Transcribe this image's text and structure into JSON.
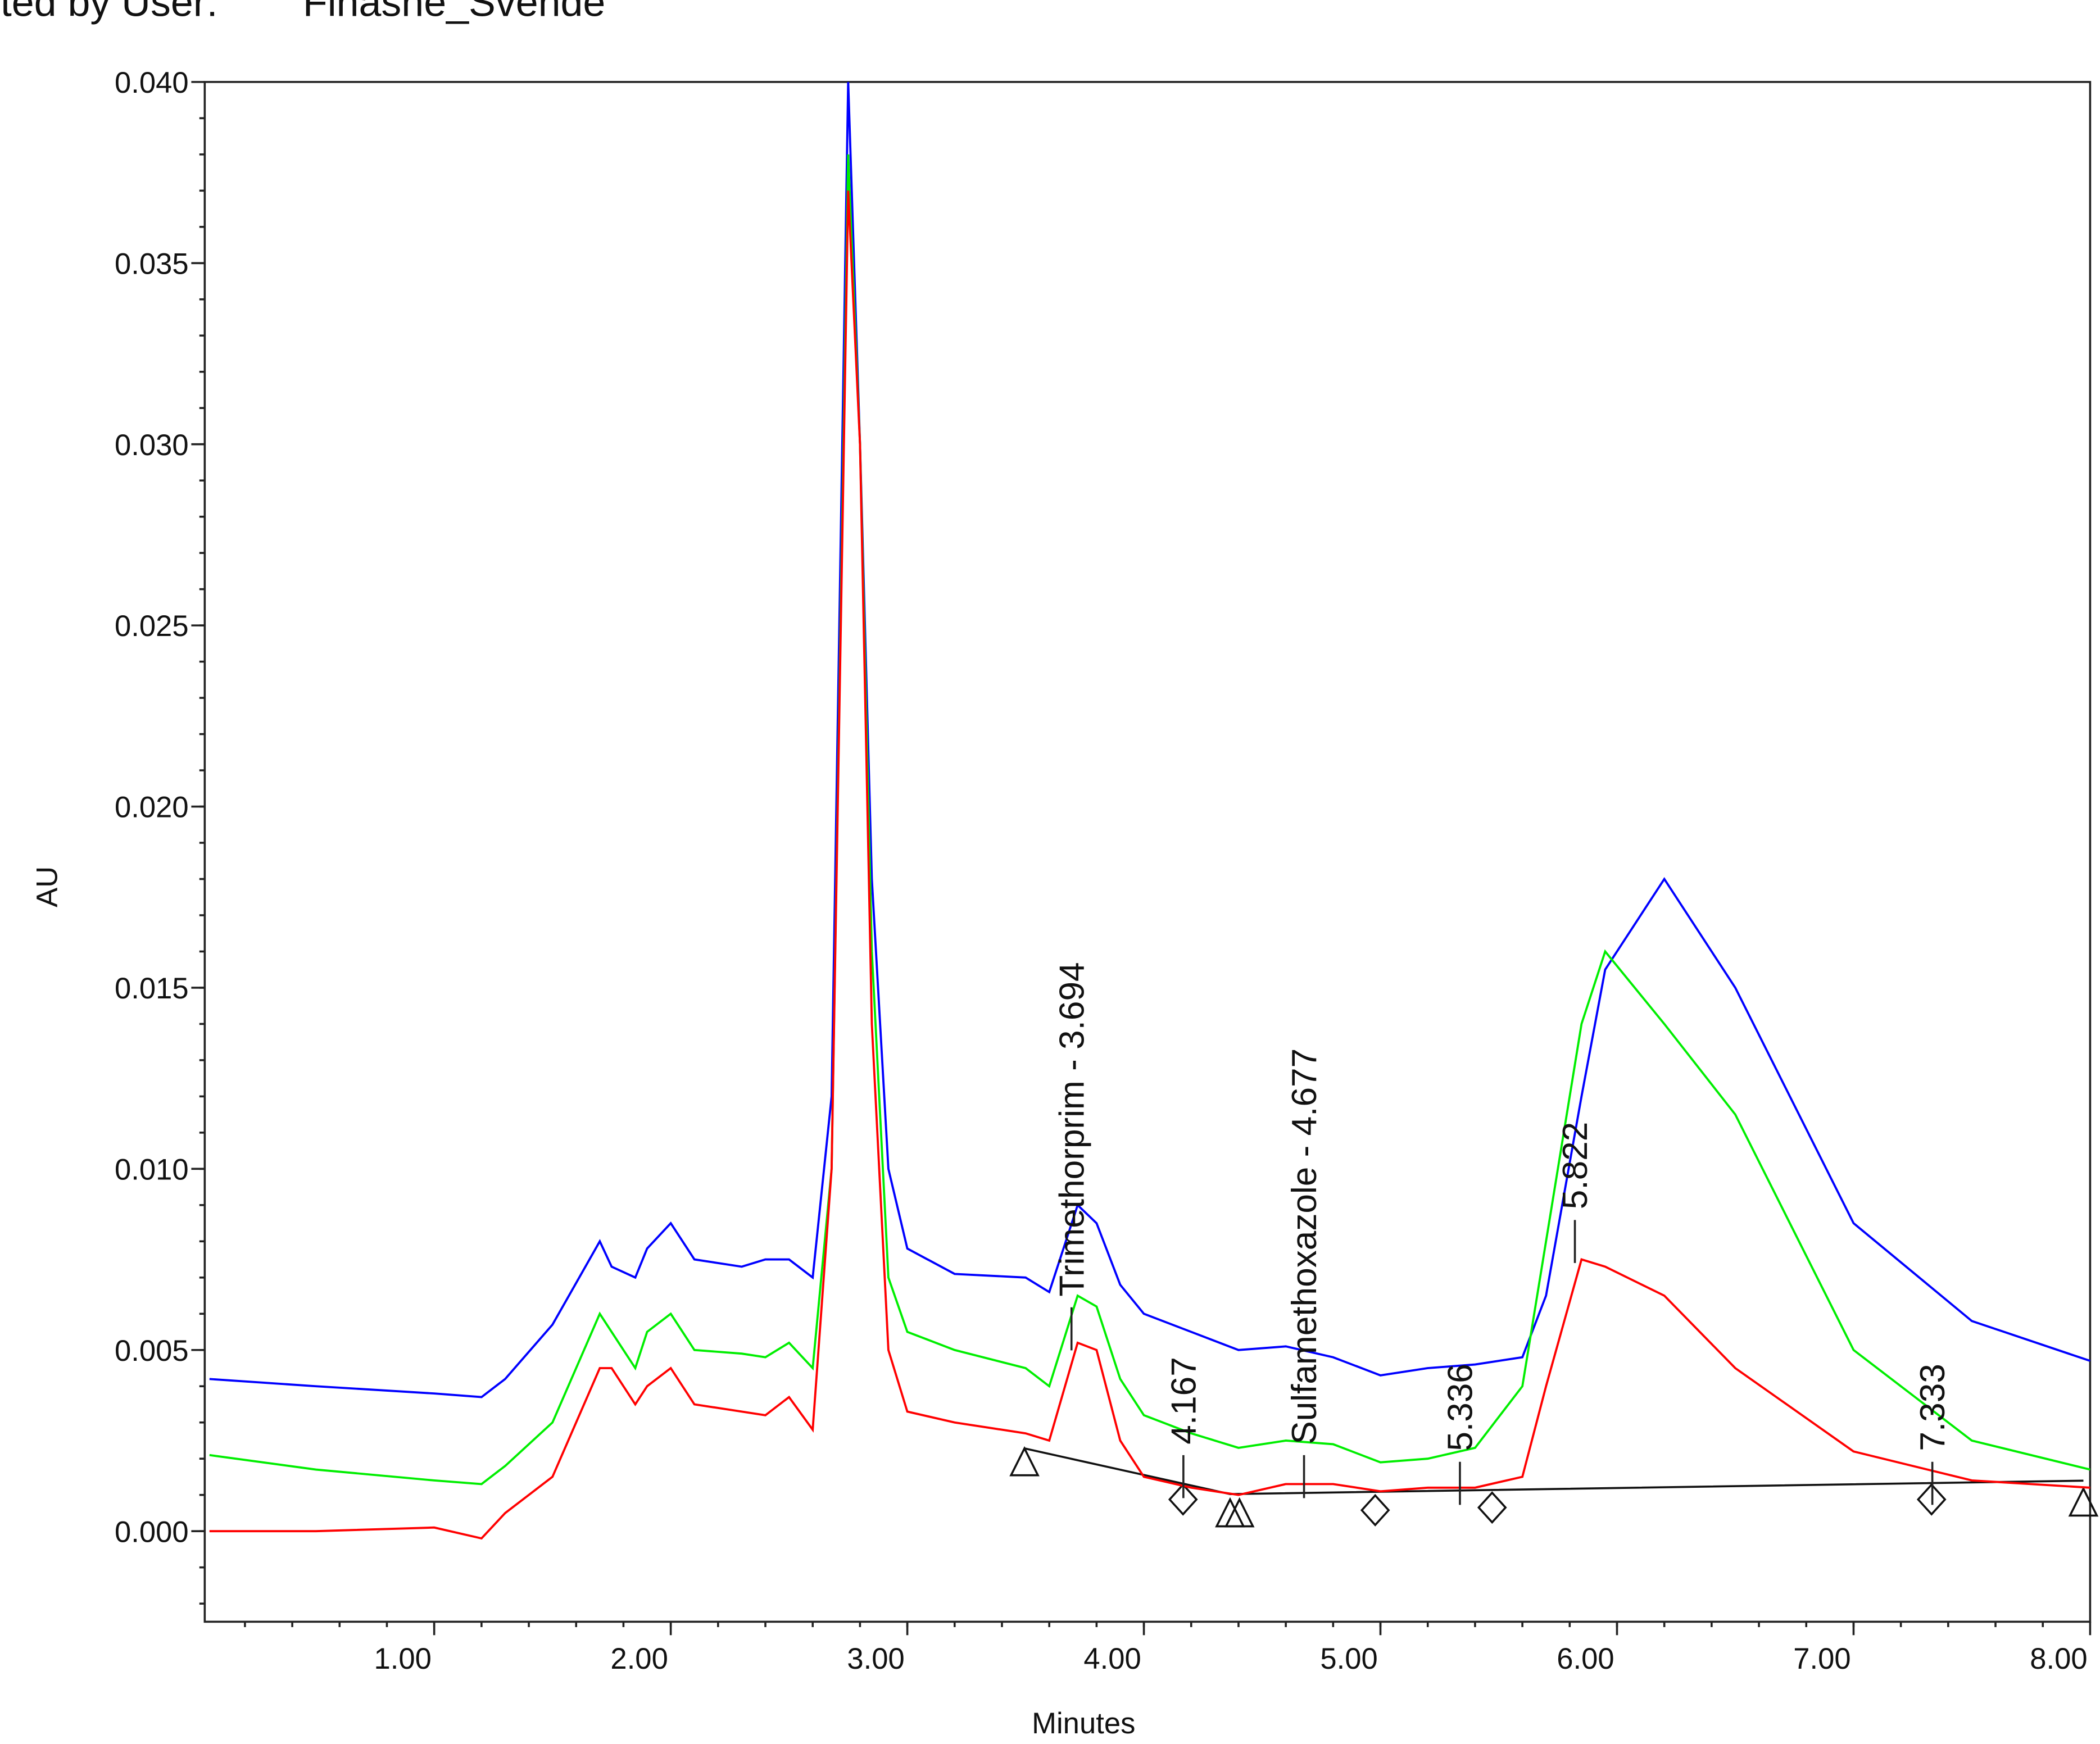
{
  "header": {
    "left": "ted by User:",
    "right": "Finasne_Svende"
  },
  "chart_data": {
    "type": "line",
    "xlabel": "Minutes",
    "ylabel": "AU",
    "x": [
      0.05,
      0.5,
      1.0,
      1.2,
      1.3,
      1.5,
      1.7,
      1.75,
      1.85,
      1.9,
      2.0,
      2.1,
      2.3,
      2.4,
      2.5,
      2.6,
      2.68,
      2.75,
      2.8,
      2.85,
      2.92,
      3.0,
      3.2,
      3.5,
      3.6,
      3.72,
      3.8,
      3.9,
      4.0,
      4.2,
      4.4,
      4.6,
      4.8,
      5.0,
      5.2,
      5.4,
      5.6,
      5.7,
      5.85,
      5.95,
      6.2,
      6.5,
      7.0,
      7.5,
      8.0
    ],
    "series": [
      {
        "color": "#0000ff",
        "values": [
          0.0042,
          0.004,
          0.0038,
          0.0037,
          0.0042,
          0.0057,
          0.008,
          0.0073,
          0.007,
          0.0078,
          0.0085,
          0.0075,
          0.0073,
          0.0075,
          0.0075,
          0.007,
          0.012,
          0.04,
          0.03,
          0.018,
          0.01,
          0.0078,
          0.0071,
          0.007,
          0.0066,
          0.009,
          0.0085,
          0.0068,
          0.006,
          0.0055,
          0.005,
          0.0051,
          0.0048,
          0.0043,
          0.0045,
          0.0046,
          0.0048,
          0.0065,
          0.012,
          0.0155,
          0.018,
          0.015,
          0.0085,
          0.0058,
          0.0047
        ]
      },
      {
        "color": "#00ee00",
        "values": [
          0.0021,
          0.0017,
          0.0014,
          0.0013,
          0.0018,
          0.003,
          0.006,
          0.0055,
          0.0045,
          0.0055,
          0.006,
          0.005,
          0.0049,
          0.0048,
          0.0052,
          0.0045,
          0.01,
          0.038,
          0.03,
          0.016,
          0.007,
          0.0055,
          0.005,
          0.0045,
          0.004,
          0.0065,
          0.0062,
          0.0042,
          0.0032,
          0.0027,
          0.0023,
          0.0025,
          0.0024,
          0.0019,
          0.002,
          0.0023,
          0.004,
          0.008,
          0.014,
          0.016,
          0.014,
          0.0115,
          0.005,
          0.0025,
          0.0017
        ]
      },
      {
        "color": "#ff0000",
        "values": [
          0.0,
          0.0,
          0.0001,
          -0.0002,
          0.0005,
          0.0015,
          0.0045,
          0.0045,
          0.0035,
          0.004,
          0.0045,
          0.0035,
          0.0033,
          0.0032,
          0.0037,
          0.0028,
          0.01,
          0.037,
          0.03,
          0.014,
          0.005,
          0.0033,
          0.003,
          0.0027,
          0.0025,
          0.0052,
          0.005,
          0.0025,
          0.0015,
          0.0012,
          0.001,
          0.0013,
          0.0013,
          0.0011,
          0.0012,
          0.0012,
          0.0015,
          0.004,
          0.0075,
          0.0073,
          0.0065,
          0.0045,
          0.0022,
          0.0014,
          0.0012
        ]
      }
    ],
    "xlim": [
      0.03,
      8.0
    ],
    "xticks": [
      {
        "value": 1,
        "label": "1.00"
      },
      {
        "value": 2,
        "label": "2.00"
      },
      {
        "value": 3,
        "label": "3.00"
      },
      {
        "value": 4,
        "label": "4.00"
      },
      {
        "value": 5,
        "label": "5.00"
      },
      {
        "value": 6,
        "label": "6.00"
      },
      {
        "value": 7,
        "label": "7.00"
      },
      {
        "value": 8,
        "label": "8.00"
      }
    ],
    "ylim": [
      -0.0025,
      0.04
    ],
    "yticks": [
      {
        "value": 0,
        "label": "0.000"
      },
      {
        "value": 0.005,
        "label": "0.005"
      },
      {
        "value": 0.01,
        "label": "0.010"
      },
      {
        "value": 0.015,
        "label": "0.015"
      },
      {
        "value": 0.02,
        "label": "0.020"
      },
      {
        "value": 0.025,
        "label": "0.025"
      },
      {
        "value": 0.03,
        "label": "0.030"
      },
      {
        "value": 0.035,
        "label": "0.035"
      },
      {
        "value": 0.04,
        "label": "0.040"
      }
    ],
    "annotations": [
      {
        "text": "Trimethorprim - 3.694",
        "x": 3.694
      },
      {
        "text": "4.167",
        "x": 4.167
      },
      {
        "text": "Sulfamethoxazole - 4.677",
        "x": 4.677
      },
      {
        "text": "5.336",
        "x": 5.336
      },
      {
        "text": "5.822",
        "x": 5.822
      },
      {
        "text": "7.333",
        "x": 7.333
      }
    ]
  }
}
